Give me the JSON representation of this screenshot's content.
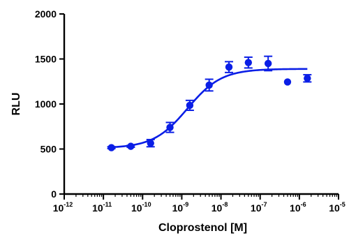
{
  "chart_data": {
    "type": "scatter",
    "xlabel": "Cloprostenol [M]",
    "ylabel": "RLU",
    "x_scale": "log",
    "xlim": [
      1e-12,
      1e-05
    ],
    "ylim": [
      0,
      2000
    ],
    "yticks": [
      0,
      500,
      1000,
      1500,
      2000
    ],
    "xticks": [
      {
        "base": "10",
        "exp": "-12"
      },
      {
        "base": "10",
        "exp": "-11"
      },
      {
        "base": "10",
        "exp": "-10"
      },
      {
        "base": "10",
        "exp": "-9"
      },
      {
        "base": "10",
        "exp": "-8"
      },
      {
        "base": "10",
        "exp": "-7"
      },
      {
        "base": "10",
        "exp": "-6"
      },
      {
        "base": "10",
        "exp": "-5"
      }
    ],
    "grid": false,
    "color": "#0a1ee6",
    "series": [
      {
        "points": [
          {
            "x": 1.6e-11,
            "y": 515,
            "err": 10
          },
          {
            "x": 5e-11,
            "y": 530,
            "err": 10
          },
          {
            "x": 1.6e-10,
            "y": 565,
            "err": 40
          },
          {
            "x": 5e-10,
            "y": 740,
            "err": 55
          },
          {
            "x": 1.6e-09,
            "y": 985,
            "err": 55
          },
          {
            "x": 5e-09,
            "y": 1210,
            "err": 65
          },
          {
            "x": 1.6e-08,
            "y": 1410,
            "err": 60
          },
          {
            "x": 5e-08,
            "y": 1460,
            "err": 60
          },
          {
            "x": 1.6e-07,
            "y": 1450,
            "err": 80
          },
          {
            "x": 5e-07,
            "y": 1245,
            "err": 0
          },
          {
            "x": 1.6e-06,
            "y": 1285,
            "err": 40
          }
        ],
        "fit": {
          "model": "4PL",
          "bottom": 510,
          "top": 1390,
          "ec50": 1.4e-09,
          "hill": 1.0,
          "x_range": [
            1.6e-11,
            1.6e-06
          ]
        }
      }
    ]
  }
}
